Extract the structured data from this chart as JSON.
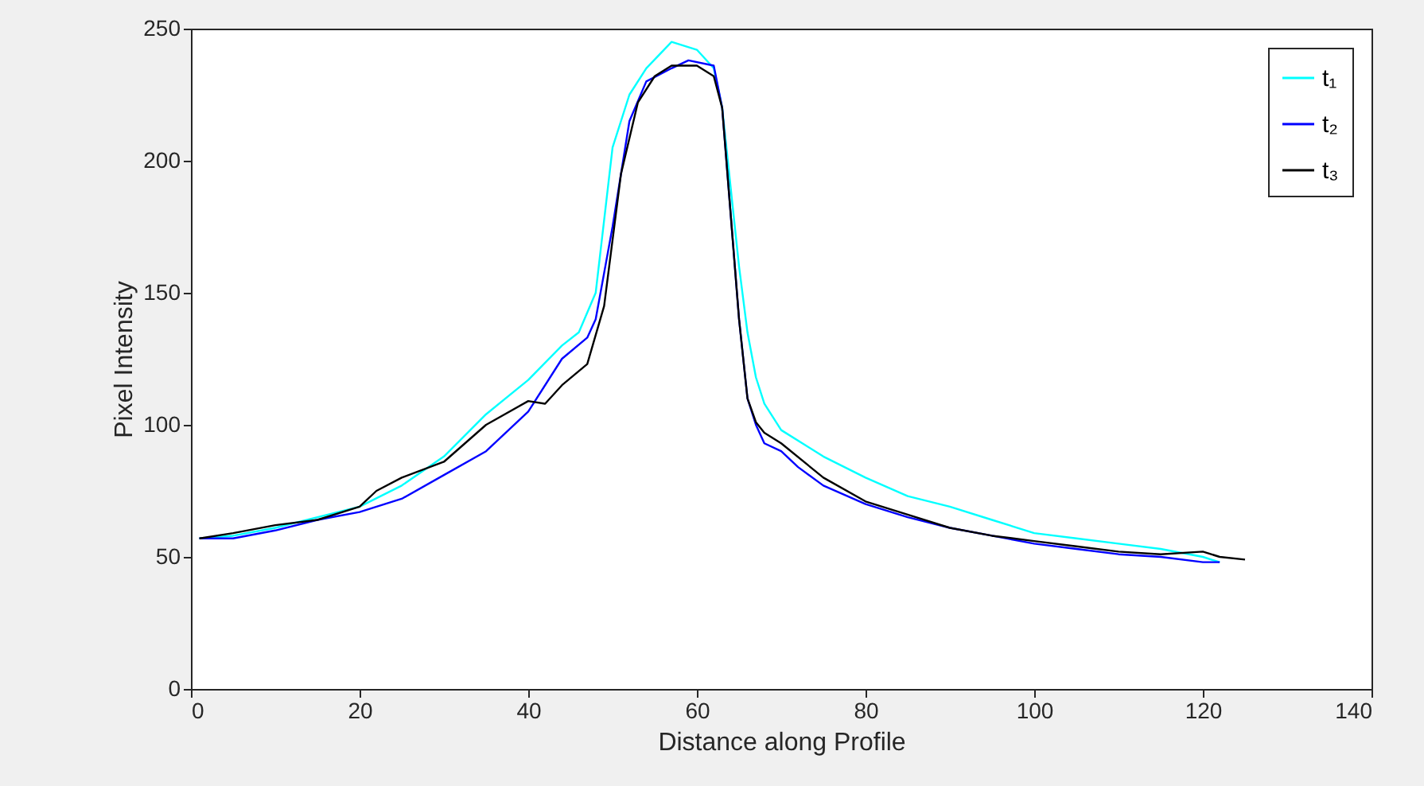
{
  "chart_data": {
    "type": "line",
    "xlabel": "Distance along Profile",
    "ylabel": "Pixel Intensity",
    "xlim": [
      0,
      140
    ],
    "xticks": [
      0,
      20,
      40,
      60,
      80,
      100,
      120,
      140
    ],
    "ylim": [
      0,
      250
    ],
    "yticks": [
      0,
      50,
      100,
      150,
      200,
      250
    ],
    "grid": false,
    "legend": "top right",
    "line_style": "solid",
    "marker": "none",
    "series": [
      {
        "name": "t₁",
        "color": "#00ffff",
        "x": [
          1,
          5,
          10,
          15,
          20,
          25,
          30,
          35,
          40,
          44,
          46,
          48,
          50,
          52,
          54,
          57,
          60,
          62,
          63,
          64,
          65,
          66,
          67,
          68,
          70,
          75,
          80,
          85,
          90,
          95,
          100,
          105,
          110,
          115,
          120,
          122
        ],
        "values": [
          57,
          58,
          61,
          65,
          69,
          77,
          88,
          104,
          117,
          130,
          135,
          150,
          205,
          225,
          235,
          245,
          242,
          235,
          220,
          190,
          160,
          135,
          118,
          108,
          98,
          88,
          80,
          73,
          69,
          64,
          59,
          57,
          55,
          53,
          50,
          48
        ]
      },
      {
        "name": "t₂",
        "color": "#0000ff",
        "x": [
          1,
          5,
          10,
          15,
          20,
          25,
          30,
          35,
          40,
          44,
          47,
          48,
          50,
          52,
          54,
          57,
          59,
          62,
          63,
          64,
          65,
          66,
          67,
          68,
          70,
          72,
          75,
          80,
          85,
          90,
          95,
          100,
          105,
          110,
          115,
          120,
          122
        ],
        "values": [
          57,
          57,
          60,
          64,
          67,
          72,
          81,
          90,
          105,
          125,
          133,
          140,
          175,
          215,
          230,
          235,
          238,
          236,
          220,
          180,
          140,
          110,
          100,
          93,
          90,
          84,
          77,
          70,
          65,
          61,
          58,
          55,
          53,
          51,
          50,
          48,
          48
        ]
      },
      {
        "name": "t₃",
        "color": "#000000",
        "x": [
          1,
          5,
          10,
          15,
          20,
          22,
          25,
          30,
          35,
          40,
          42,
          44,
          47,
          49,
          51,
          53,
          55,
          57,
          60,
          62,
          63,
          64,
          65,
          66,
          67,
          68,
          70,
          75,
          80,
          85,
          90,
          95,
          100,
          105,
          110,
          115,
          120,
          122,
          125
        ],
        "values": [
          57,
          59,
          62,
          64,
          69,
          75,
          80,
          86,
          100,
          109,
          108,
          115,
          123,
          145,
          195,
          222,
          232,
          236,
          236,
          232,
          220,
          180,
          140,
          110,
          101,
          97,
          93,
          80,
          71,
          66,
          61,
          58,
          56,
          54,
          52,
          51,
          52,
          50,
          49
        ]
      }
    ]
  }
}
